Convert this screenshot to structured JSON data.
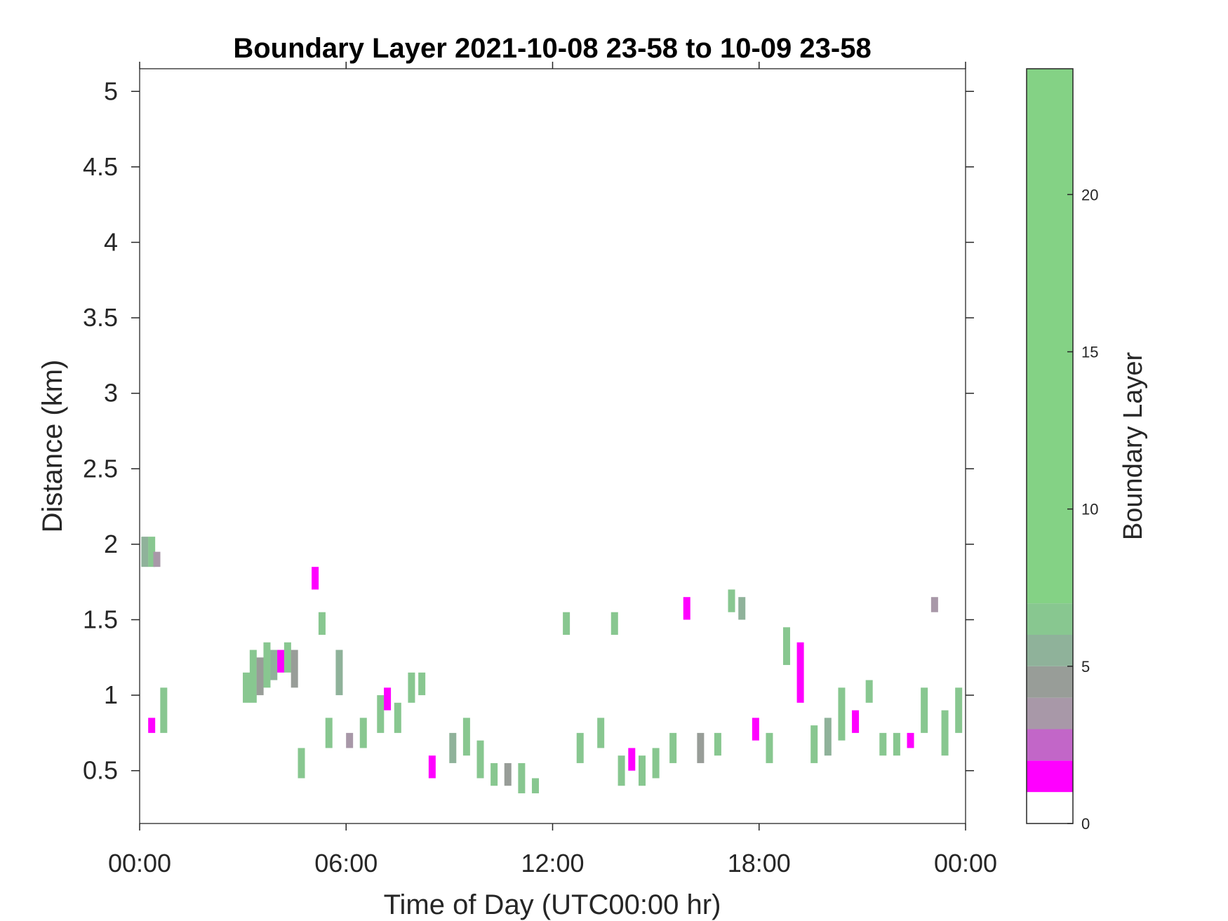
{
  "chart_data": {
    "type": "heatmap",
    "title": "Boundary Layer 2021-10-08 23-58 to 10-09 23-58",
    "xlabel": "Time of Day (UTC00:00 hr)",
    "ylabel": "Distance (km)",
    "x_ticks": [
      "00:00",
      "06:00",
      "12:00",
      "18:00",
      "00:00"
    ],
    "x_range_hours": [
      0,
      24
    ],
    "y_ticks": [
      "0.5",
      "1",
      "1.5",
      "2",
      "2.5",
      "3",
      "3.5",
      "4",
      "4.5",
      "5"
    ],
    "y_range_km": [
      0.15,
      5.15
    ],
    "colorbar": {
      "label": "Boundary Layer",
      "ticks": [
        "0",
        "5",
        "10",
        "15",
        "20"
      ],
      "range": [
        0,
        24
      ],
      "colors": [
        "#ffffff",
        "#ff00ff",
        "#c266c8",
        "#a898a8",
        "#989d98",
        "#8fb29a",
        "#88c790",
        "#84d285"
      ]
    },
    "series": [
      {
        "hour": 0.15,
        "y_min": 1.85,
        "y_max": 2.05,
        "color": "#8fb29a"
      },
      {
        "hour": 0.35,
        "y_min": 1.85,
        "y_max": 2.05,
        "color": "#88c790"
      },
      {
        "hour": 0.35,
        "y_min": 0.75,
        "y_max": 0.85,
        "color": "#ff00ff"
      },
      {
        "hour": 0.5,
        "y_min": 1.85,
        "y_max": 1.95,
        "color": "#a898a8"
      },
      {
        "hour": 0.7,
        "y_min": 0.75,
        "y_max": 1.05,
        "color": "#88c790"
      },
      {
        "hour": 3.1,
        "y_min": 0.95,
        "y_max": 1.15,
        "color": "#88c790"
      },
      {
        "hour": 3.3,
        "y_min": 0.95,
        "y_max": 1.3,
        "color": "#88c790"
      },
      {
        "hour": 3.5,
        "y_min": 1.0,
        "y_max": 1.25,
        "color": "#989d98"
      },
      {
        "hour": 3.7,
        "y_min": 1.05,
        "y_max": 1.35,
        "color": "#88c790"
      },
      {
        "hour": 3.9,
        "y_min": 1.1,
        "y_max": 1.3,
        "color": "#8fb29a"
      },
      {
        "hour": 4.1,
        "y_min": 1.15,
        "y_max": 1.3,
        "color": "#ff00ff"
      },
      {
        "hour": 4.3,
        "y_min": 1.15,
        "y_max": 1.35,
        "color": "#88c790"
      },
      {
        "hour": 4.5,
        "y_min": 1.05,
        "y_max": 1.3,
        "color": "#989d98"
      },
      {
        "hour": 4.7,
        "y_min": 0.45,
        "y_max": 0.65,
        "color": "#88c790"
      },
      {
        "hour": 5.1,
        "y_min": 1.7,
        "y_max": 1.85,
        "color": "#ff00ff"
      },
      {
        "hour": 5.3,
        "y_min": 1.4,
        "y_max": 1.55,
        "color": "#88c790"
      },
      {
        "hour": 5.5,
        "y_min": 0.65,
        "y_max": 0.85,
        "color": "#88c790"
      },
      {
        "hour": 5.8,
        "y_min": 1.0,
        "y_max": 1.3,
        "color": "#8fb29a"
      },
      {
        "hour": 6.1,
        "y_min": 0.65,
        "y_max": 0.75,
        "color": "#a898a8"
      },
      {
        "hour": 6.5,
        "y_min": 0.65,
        "y_max": 0.85,
        "color": "#88c790"
      },
      {
        "hour": 7.0,
        "y_min": 0.75,
        "y_max": 1.0,
        "color": "#88c790"
      },
      {
        "hour": 7.2,
        "y_min": 0.9,
        "y_max": 1.05,
        "color": "#ff00ff"
      },
      {
        "hour": 7.5,
        "y_min": 0.75,
        "y_max": 0.95,
        "color": "#88c790"
      },
      {
        "hour": 7.9,
        "y_min": 0.95,
        "y_max": 1.15,
        "color": "#88c790"
      },
      {
        "hour": 8.2,
        "y_min": 1.0,
        "y_max": 1.15,
        "color": "#88c790"
      },
      {
        "hour": 8.5,
        "y_min": 0.45,
        "y_max": 0.6,
        "color": "#ff00ff"
      },
      {
        "hour": 9.1,
        "y_min": 0.55,
        "y_max": 0.75,
        "color": "#8fb29a"
      },
      {
        "hour": 9.5,
        "y_min": 0.6,
        "y_max": 0.85,
        "color": "#88c790"
      },
      {
        "hour": 9.9,
        "y_min": 0.45,
        "y_max": 0.7,
        "color": "#88c790"
      },
      {
        "hour": 10.3,
        "y_min": 0.4,
        "y_max": 0.55,
        "color": "#88c790"
      },
      {
        "hour": 10.7,
        "y_min": 0.4,
        "y_max": 0.55,
        "color": "#989d98"
      },
      {
        "hour": 11.1,
        "y_min": 0.35,
        "y_max": 0.55,
        "color": "#88c790"
      },
      {
        "hour": 11.5,
        "y_min": 0.35,
        "y_max": 0.45,
        "color": "#88c790"
      },
      {
        "hour": 12.4,
        "y_min": 1.4,
        "y_max": 1.55,
        "color": "#88c790"
      },
      {
        "hour": 12.8,
        "y_min": 0.55,
        "y_max": 0.75,
        "color": "#88c790"
      },
      {
        "hour": 13.4,
        "y_min": 0.65,
        "y_max": 0.85,
        "color": "#88c790"
      },
      {
        "hour": 13.8,
        "y_min": 1.4,
        "y_max": 1.55,
        "color": "#88c790"
      },
      {
        "hour": 14.0,
        "y_min": 0.4,
        "y_max": 0.6,
        "color": "#88c790"
      },
      {
        "hour": 14.3,
        "y_min": 0.5,
        "y_max": 0.65,
        "color": "#ff00ff"
      },
      {
        "hour": 14.6,
        "y_min": 0.4,
        "y_max": 0.6,
        "color": "#88c790"
      },
      {
        "hour": 15.0,
        "y_min": 0.45,
        "y_max": 0.65,
        "color": "#88c790"
      },
      {
        "hour": 15.5,
        "y_min": 0.55,
        "y_max": 0.75,
        "color": "#88c790"
      },
      {
        "hour": 15.9,
        "y_min": 1.5,
        "y_max": 1.65,
        "color": "#ff00ff"
      },
      {
        "hour": 16.3,
        "y_min": 0.55,
        "y_max": 0.75,
        "color": "#989d98"
      },
      {
        "hour": 16.8,
        "y_min": 0.6,
        "y_max": 0.75,
        "color": "#88c790"
      },
      {
        "hour": 17.2,
        "y_min": 1.55,
        "y_max": 1.7,
        "color": "#88c790"
      },
      {
        "hour": 17.5,
        "y_min": 1.5,
        "y_max": 1.65,
        "color": "#8fb29a"
      },
      {
        "hour": 17.9,
        "y_min": 0.7,
        "y_max": 0.85,
        "color": "#ff00ff"
      },
      {
        "hour": 18.3,
        "y_min": 0.55,
        "y_max": 0.75,
        "color": "#88c790"
      },
      {
        "hour": 18.8,
        "y_min": 1.2,
        "y_max": 1.45,
        "color": "#88c790"
      },
      {
        "hour": 19.2,
        "y_min": 0.95,
        "y_max": 1.35,
        "color": "#ff00ff"
      },
      {
        "hour": 19.6,
        "y_min": 0.55,
        "y_max": 0.8,
        "color": "#88c790"
      },
      {
        "hour": 20.0,
        "y_min": 0.6,
        "y_max": 0.85,
        "color": "#8fb29a"
      },
      {
        "hour": 20.4,
        "y_min": 0.7,
        "y_max": 1.05,
        "color": "#88c790"
      },
      {
        "hour": 20.8,
        "y_min": 0.75,
        "y_max": 0.9,
        "color": "#ff00ff"
      },
      {
        "hour": 21.2,
        "y_min": 0.95,
        "y_max": 1.1,
        "color": "#88c790"
      },
      {
        "hour": 21.6,
        "y_min": 0.6,
        "y_max": 0.75,
        "color": "#88c790"
      },
      {
        "hour": 22.0,
        "y_min": 0.6,
        "y_max": 0.75,
        "color": "#88c790"
      },
      {
        "hour": 22.4,
        "y_min": 0.65,
        "y_max": 0.75,
        "color": "#ff00ff"
      },
      {
        "hour": 22.8,
        "y_min": 0.75,
        "y_max": 1.05,
        "color": "#88c790"
      },
      {
        "hour": 23.1,
        "y_min": 1.55,
        "y_max": 1.65,
        "color": "#a898a8"
      },
      {
        "hour": 23.4,
        "y_min": 0.6,
        "y_max": 0.9,
        "color": "#88c790"
      },
      {
        "hour": 23.8,
        "y_min": 0.75,
        "y_max": 1.05,
        "color": "#88c790"
      }
    ]
  }
}
